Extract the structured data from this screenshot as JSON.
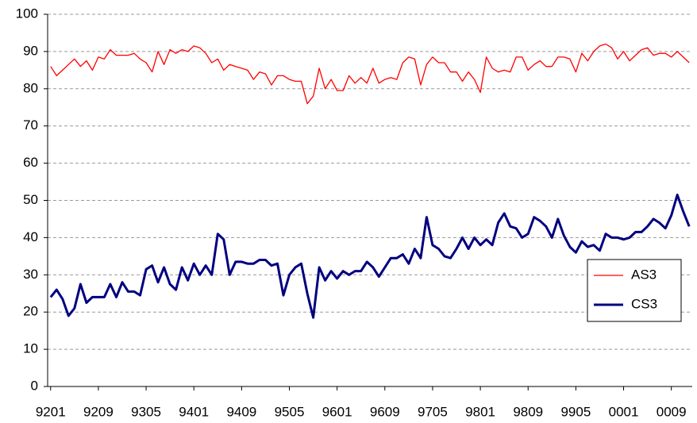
{
  "chart_data": {
    "type": "line",
    "categories": [
      "9201",
      null,
      null,
      null,
      null,
      null,
      null,
      null,
      "9209",
      null,
      null,
      null,
      null,
      null,
      null,
      null,
      "9305",
      null,
      null,
      null,
      null,
      null,
      null,
      null,
      "9401",
      null,
      null,
      null,
      null,
      null,
      null,
      null,
      "9409",
      null,
      null,
      null,
      null,
      null,
      null,
      null,
      "9505",
      null,
      null,
      null,
      null,
      null,
      null,
      null,
      "9601",
      null,
      null,
      null,
      null,
      null,
      null,
      null,
      "9609",
      null,
      null,
      null,
      null,
      null,
      null,
      null,
      "9705",
      null,
      null,
      null,
      null,
      null,
      null,
      null,
      "9801",
      null,
      null,
      null,
      null,
      null,
      null,
      null,
      "9809",
      null,
      null,
      null,
      null,
      null,
      null,
      null,
      "9905",
      null,
      null,
      null,
      null,
      null,
      null,
      null,
      "0001",
      null,
      null,
      null,
      null,
      null,
      null,
      null,
      "0009",
      null,
      null,
      null
    ],
    "series": [
      {
        "name": "AS3",
        "color": "#ff0000",
        "values": [
          86,
          83.5,
          85,
          86.5,
          88,
          86,
          87.5,
          85,
          88.5,
          88,
          90.5,
          89,
          89,
          89,
          89.5,
          88,
          87,
          84.5,
          90,
          86.5,
          90.5,
          89.5,
          90.5,
          90,
          91.5,
          91,
          89.5,
          87,
          88,
          85,
          86.5,
          86,
          85.5,
          85,
          82.5,
          84.5,
          84,
          81,
          83.5,
          83.5,
          82.5,
          82,
          82,
          76,
          78,
          85.5,
          80,
          82.5,
          79.5,
          79.5,
          83.5,
          81.5,
          83,
          81.5,
          85.5,
          81.5,
          82.5,
          83,
          82.5,
          87,
          88.5,
          88,
          81,
          86.5,
          88.5,
          87,
          87,
          84.5,
          84.5,
          82,
          84.5,
          82.5,
          79,
          88.5,
          85.5,
          84.5,
          85,
          84.5,
          88.5,
          88.5,
          85,
          86.5,
          87.5,
          86,
          86,
          88.5,
          88.5,
          88,
          84.5,
          89.5,
          87.5,
          90,
          91.5,
          92,
          91,
          88,
          90,
          87.5,
          89,
          90.5,
          91,
          89,
          89.5,
          89.5,
          88.5,
          90,
          88.5,
          87
        ]
      },
      {
        "name": "CS3",
        "color": "#000080",
        "values": [
          24,
          26,
          23.5,
          19,
          21,
          27.5,
          22.5,
          24,
          24,
          24,
          27.5,
          24,
          28,
          25.5,
          25.5,
          24.5,
          31.5,
          32.5,
          28,
          32,
          27.5,
          26,
          32,
          28.5,
          33,
          30,
          32.5,
          30,
          41,
          39.5,
          30,
          33.5,
          33.5,
          33,
          33,
          34,
          34,
          32.5,
          33,
          24.5,
          30,
          32,
          33,
          25,
          18.5,
          32,
          28.5,
          31,
          29,
          31,
          30,
          31,
          31,
          33.5,
          32,
          29.5,
          32,
          34.5,
          34.5,
          35.5,
          33,
          37,
          34.5,
          45.5,
          38,
          37,
          35,
          34.5,
          37,
          40,
          37,
          40,
          38,
          39.5,
          38,
          44,
          46.5,
          43,
          42.5,
          40,
          41,
          45.5,
          44.5,
          43,
          40,
          45,
          40.5,
          37.5,
          36,
          39,
          37.5,
          38,
          36.5,
          41,
          40,
          40,
          39.5,
          40,
          41.5,
          41.5,
          43,
          45,
          44,
          42.5,
          46,
          51.5,
          47,
          43
        ]
      }
    ],
    "ylim": [
      0,
      100
    ],
    "yticks": [
      0,
      10,
      20,
      30,
      40,
      50,
      60,
      70,
      80,
      90,
      100
    ],
    "grid": true,
    "legend": "right"
  }
}
